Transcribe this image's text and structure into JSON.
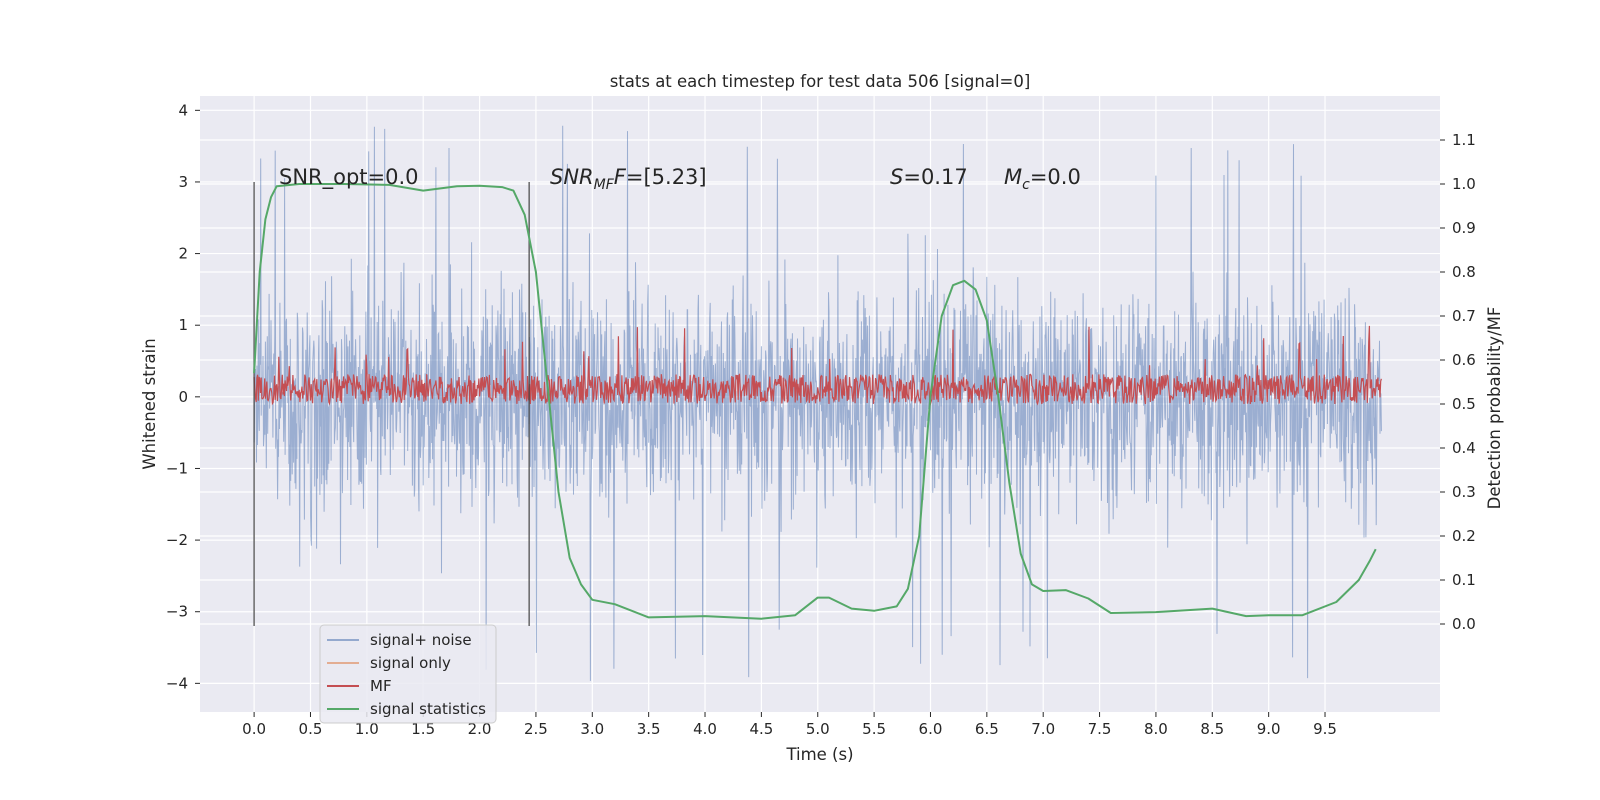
{
  "chart_data": {
    "type": "line",
    "title": "stats at each timestep for test data 506 [signal=0]",
    "xlabel": "Time (s)",
    "ylabel": "Whitened strain",
    "y2label": "Detection probability/MF",
    "xlim": [
      -0.48,
      10.52
    ],
    "ylim": [
      -4.4,
      4.2
    ],
    "y2lim": [
      -0.2,
      1.2
    ],
    "x_ticks": [
      "0.0",
      "0.5",
      "1.0",
      "1.5",
      "2.0",
      "2.5",
      "3.0",
      "3.5",
      "4.0",
      "4.5",
      "5.0",
      "5.5",
      "6.0",
      "6.5",
      "7.0",
      "7.5",
      "8.0",
      "8.5",
      "9.0",
      "9.5"
    ],
    "y_ticks": [
      "4",
      "3",
      "2",
      "1",
      "0",
      "−1",
      "−2",
      "−3",
      "−4"
    ],
    "y2_ticks": [
      "1.1",
      "1.0",
      "0.9",
      "0.8",
      "0.7",
      "0.6",
      "0.5",
      "0.4",
      "0.3",
      "0.2",
      "0.1",
      "0.0"
    ],
    "grid": true,
    "legend_position": "lower-left",
    "annotations": {
      "snr_opt": "SNR_opt=0.0",
      "snr_mf_base": "SNR",
      "snr_mf_sub": "MF",
      "snr_mf_italic": "F",
      "snr_mf_value": "=[5.23]",
      "s_symbol": "S",
      "s_value": "=0.17",
      "mc_symbol": "M",
      "mc_sub": "c",
      "mc_value": "=0.0"
    },
    "vlines": [
      0.0,
      2.44
    ],
    "series": [
      {
        "name": "signal+ noise",
        "color": "#4c72b0",
        "alpha": 0.5,
        "axis": "left",
        "x_range": [
          0.0,
          10.0
        ],
        "envelope_upper": 2.7,
        "envelope_lower": -2.6,
        "peak_max": 3.8,
        "peak_min": -4.0
      },
      {
        "name": "signal only",
        "color": "#dd8452",
        "axis": "left",
        "values": []
      },
      {
        "name": "MF",
        "color": "#c44e52",
        "axis": "right",
        "x_range": [
          0.0,
          10.0
        ],
        "baseline": 0.5,
        "range": [
          0.5,
          0.58
        ],
        "peak_max": 0.68
      },
      {
        "name": "signal statistics",
        "color": "#55a868",
        "axis": "right",
        "x": [
          0.0,
          0.05,
          0.1,
          0.15,
          0.2,
          0.4,
          0.8,
          1.2,
          1.5,
          1.8,
          2.0,
          2.2,
          2.3,
          2.4,
          2.5,
          2.6,
          2.7,
          2.8,
          2.9,
          3.0,
          3.2,
          3.5,
          4.0,
          4.5,
          4.8,
          5.0,
          5.1,
          5.3,
          5.5,
          5.7,
          5.8,
          5.9,
          6.0,
          6.1,
          6.2,
          6.3,
          6.4,
          6.5,
          6.6,
          6.7,
          6.8,
          6.9,
          7.0,
          7.2,
          7.4,
          7.6,
          8.0,
          8.5,
          8.8,
          9.0,
          9.3,
          9.6,
          9.8,
          9.9,
          9.95
        ],
        "values": [
          0.57,
          0.8,
          0.92,
          0.97,
          0.995,
          1.0,
          1.0,
          0.998,
          0.985,
          0.995,
          0.996,
          0.993,
          0.985,
          0.93,
          0.8,
          0.55,
          0.3,
          0.15,
          0.09,
          0.055,
          0.045,
          0.015,
          0.018,
          0.012,
          0.02,
          0.06,
          0.06,
          0.035,
          0.03,
          0.04,
          0.08,
          0.2,
          0.52,
          0.7,
          0.77,
          0.78,
          0.76,
          0.69,
          0.52,
          0.32,
          0.16,
          0.09,
          0.075,
          0.077,
          0.058,
          0.025,
          0.027,
          0.035,
          0.018,
          0.02,
          0.02,
          0.05,
          0.1,
          0.145,
          0.17
        ]
      }
    ]
  }
}
